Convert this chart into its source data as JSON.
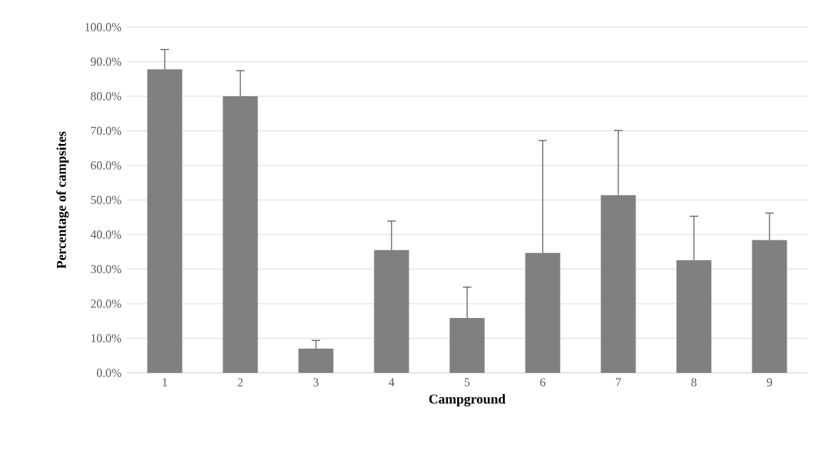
{
  "chart_data": {
    "type": "bar",
    "xlabel": "Campground",
    "ylabel": "Percentage of campsites",
    "categories": [
      "1",
      "2",
      "3",
      "4",
      "5",
      "6",
      "7",
      "8",
      "9"
    ],
    "values": [
      87.8,
      80.0,
      7.0,
      35.5,
      15.9,
      34.7,
      51.4,
      32.6,
      38.4
    ],
    "errors": [
      [
        87.8,
        93.5
      ],
      [
        80.0,
        87.4
      ],
      [
        7.0,
        9.4
      ],
      [
        35.5,
        43.9
      ],
      [
        15.9,
        24.8
      ],
      [
        34.7,
        67.2
      ],
      [
        51.4,
        70.1
      ],
      [
        32.6,
        45.3
      ],
      [
        38.4,
        46.2
      ]
    ],
    "color": "#808080",
    "ylim": [
      0,
      100
    ],
    "yticks": [
      {
        "value": 0,
        "label": "0.0%"
      },
      {
        "value": 10,
        "label": "10.0%"
      },
      {
        "value": 20,
        "label": "20.0%"
      },
      {
        "value": 30,
        "label": "30.0%"
      },
      {
        "value": 40,
        "label": "40.0%"
      },
      {
        "value": 50,
        "label": "50.0%"
      },
      {
        "value": 60,
        "label": "60.0%"
      },
      {
        "value": 70,
        "label": "70.0%"
      },
      {
        "value": 80,
        "label": "80.0%"
      },
      {
        "value": 90,
        "label": "90.0%"
      },
      {
        "value": 100,
        "label": "100.0%"
      }
    ],
    "grid": "y"
  }
}
